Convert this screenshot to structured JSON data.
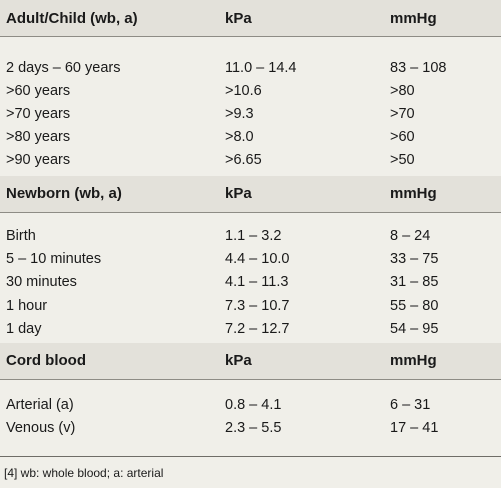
{
  "sections": [
    {
      "header": [
        "Adult/Child (wb, a)",
        "kPa",
        "mmHg"
      ],
      "rows": [
        [
          "2 days – 60 years",
          "11.0 – 14.4",
          "83 – 108"
        ],
        [
          ">60 years",
          ">10.6",
          ">80"
        ],
        [
          ">70 years",
          ">9.3",
          ">70"
        ],
        [
          ">80 years",
          ">8.0",
          ">60"
        ],
        [
          ">90 years",
          ">6.65",
          ">50"
        ]
      ]
    },
    {
      "header": [
        "Newborn (wb, a)",
        "kPa",
        "mmHg"
      ],
      "rows": [
        [
          "Birth",
          "1.1 – 3.2",
          "8 – 24"
        ],
        [
          "5 – 10 minutes",
          "4.4 – 10.0",
          "33 – 75"
        ],
        [
          "30 minutes",
          "4.1 – 11.3",
          "31 – 85"
        ],
        [
          "1 hour",
          "7.3 – 10.7",
          "55 – 80"
        ],
        [
          "1 day",
          "7.2 – 12.7",
          "54 – 95"
        ]
      ]
    },
    {
      "header": [
        "Cord blood",
        "kPa",
        "mmHg"
      ],
      "rows": [
        [
          "Arterial (a)",
          "0.8 – 4.1",
          "6 – 31"
        ],
        [
          "Venous (v)",
          "2.3 – 5.5",
          "17 – 41"
        ]
      ]
    }
  ],
  "footnote": "[4] wb: whole blood; a: arterial"
}
